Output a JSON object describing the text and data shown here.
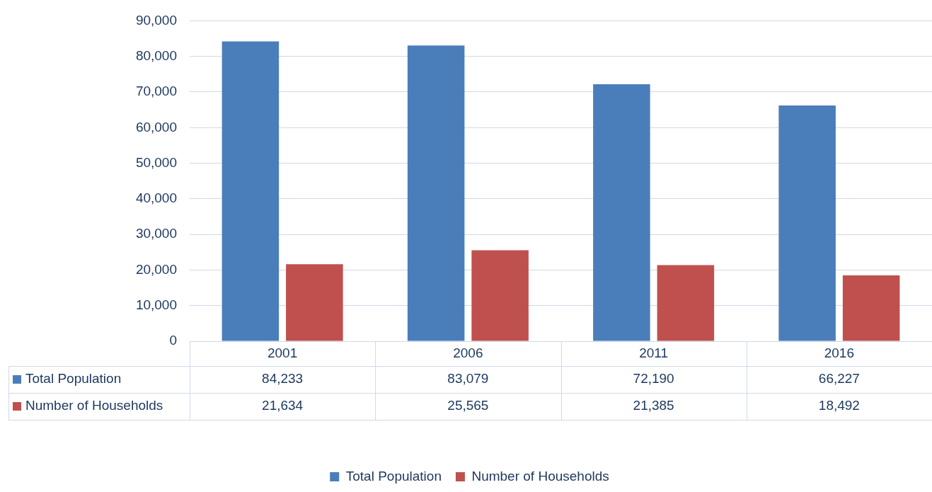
{
  "chart_data": {
    "type": "bar",
    "categories": [
      "2001",
      "2006",
      "2011",
      "2016"
    ],
    "series": [
      {
        "name": "Total Population",
        "color": "#4a7ebb",
        "values": [
          84233,
          83079,
          72190,
          66227
        ],
        "value_labels": [
          "84,233",
          "83,079",
          "72,190",
          "66,227"
        ]
      },
      {
        "name": "Number of Households",
        "color": "#c0504d",
        "values": [
          21634,
          25565,
          21385,
          18492
        ],
        "value_labels": [
          "21,634",
          "25,565",
          "21,385",
          "18,492"
        ]
      }
    ],
    "ylim": [
      0,
      90000
    ],
    "yticks": [
      0,
      {
        "value": 10000,
        "label": "10,000"
      },
      {
        "value": 20000,
        "label": "20,000"
      },
      {
        "value": 30000,
        "label": "30,000"
      },
      {
        "value": 40000,
        "label": "40,000"
      },
      {
        "value": 50000,
        "label": "50,000"
      },
      {
        "value": 60000,
        "label": "60,000"
      },
      {
        "value": 70000,
        "label": "70,000"
      },
      {
        "value": 80000,
        "label": "80,000"
      },
      {
        "value": 90000,
        "label": "90,000"
      }
    ],
    "grid": "y",
    "legend": "bottom"
  }
}
